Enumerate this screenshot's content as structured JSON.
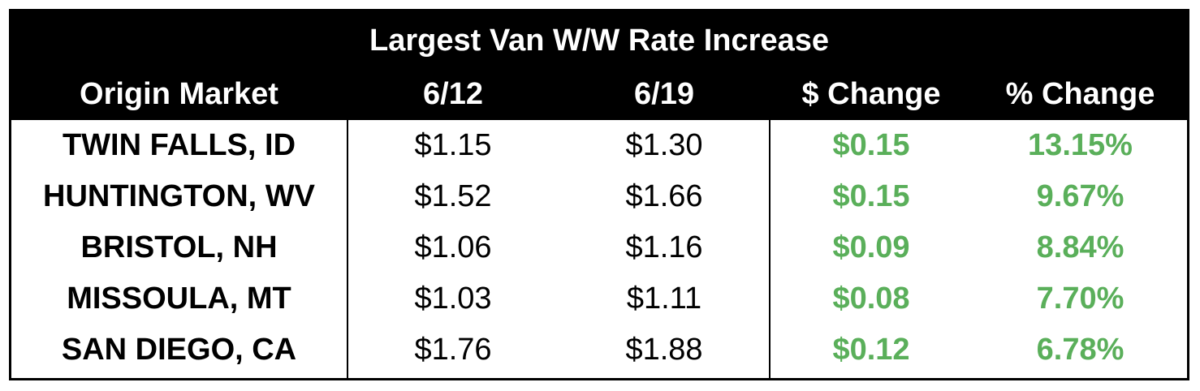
{
  "title": "Largest Van W/W Rate Increase",
  "columns": [
    "Origin Market",
    "6/12",
    "6/19",
    "$ Change",
    "% Change"
  ],
  "accent_color": "#5aaf5a",
  "rows": [
    {
      "market": "TWIN FALLS, ID",
      "prev": "$1.15",
      "curr": "$1.30",
      "dollar_change": "$0.15",
      "pct_change": "13.15%"
    },
    {
      "market": "HUNTINGTON, WV",
      "prev": "$1.52",
      "curr": "$1.66",
      "dollar_change": "$0.15",
      "pct_change": "9.67%"
    },
    {
      "market": "BRISTOL, NH",
      "prev": "$1.06",
      "curr": "$1.16",
      "dollar_change": "$0.09",
      "pct_change": "8.84%"
    },
    {
      "market": "MISSOULA, MT",
      "prev": "$1.03",
      "curr": "$1.11",
      "dollar_change": "$0.08",
      "pct_change": "7.70%"
    },
    {
      "market": "SAN DIEGO, CA",
      "prev": "$1.76",
      "curr": "$1.88",
      "dollar_change": "$0.12",
      "pct_change": "6.78%"
    }
  ]
}
